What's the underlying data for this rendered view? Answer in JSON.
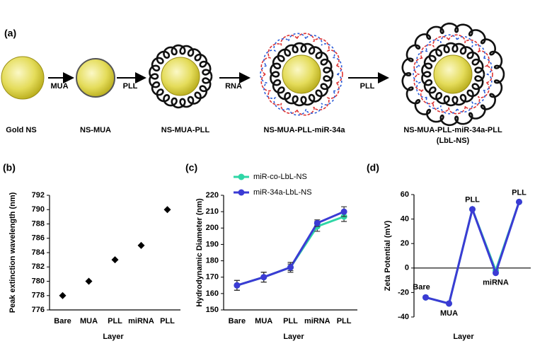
{
  "diagram": {
    "label": "(a)",
    "steps": [
      "Gold NS",
      "NS-MUA",
      "NS-MUA-PLL",
      "NS-MUA-PLL-miR-34a",
      "NS-MUA-PLL-miR-34a-PLL",
      "(LbL-NS)"
    ],
    "arrows": [
      "MUA",
      "PLL",
      "RNA",
      "PLL"
    ]
  },
  "chart_data": [
    {
      "type": "scatter",
      "label": "(b)",
      "y_label": "Peak extinction wavelength (nm)",
      "x_label": "Layer",
      "categories": [
        "Bare",
        "MUA",
        "PLL",
        "miRNA",
        "PLL"
      ],
      "values": [
        778,
        780,
        783,
        785,
        790
      ],
      "color": "#000000",
      "ylim": [
        776,
        792
      ],
      "yticks": [
        776,
        778,
        780,
        782,
        784,
        786,
        788,
        790,
        792
      ]
    },
    {
      "type": "line",
      "label": "(c)",
      "y_label": "Hydrodynamic Diameter (nm)",
      "x_label": "Layer",
      "legend": "top-left",
      "categories": [
        "Bare",
        "MUA",
        "PLL",
        "miRNA",
        "PLL"
      ],
      "series": [
        {
          "name": "miR-co-LbL-NS",
          "color": "#2fd6a6",
          "values": [
            165,
            170,
            176,
            201,
            207
          ],
          "errors": [
            3,
            3,
            2,
            3,
            3
          ]
        },
        {
          "name": "miR-34a-LbL-NS",
          "color": "#3b3bd4",
          "values": [
            165,
            170,
            176,
            203,
            210
          ],
          "errors": [
            3,
            3,
            3,
            2,
            3
          ]
        }
      ],
      "ylim": [
        150,
        220
      ],
      "yticks": [
        150,
        160,
        170,
        180,
        190,
        200,
        210,
        220
      ]
    },
    {
      "type": "line",
      "label": "(d)",
      "y_label": "Zeta Potential (mV)",
      "x_label": "Layer",
      "point_labels": true,
      "categories": [
        "Bare",
        "MUA",
        "PLL",
        "miRNA",
        "PLL"
      ],
      "series": [
        {
          "color": "#2fd6a6",
          "values": [
            -24,
            -29,
            48,
            -2,
            54
          ]
        },
        {
          "color": "#3b3bd4",
          "values": [
            -24,
            -29,
            48,
            -4,
            54
          ]
        }
      ],
      "ylim": [
        -40,
        60
      ],
      "yticks": [
        -40,
        -20,
        0,
        20,
        40,
        60
      ]
    }
  ]
}
